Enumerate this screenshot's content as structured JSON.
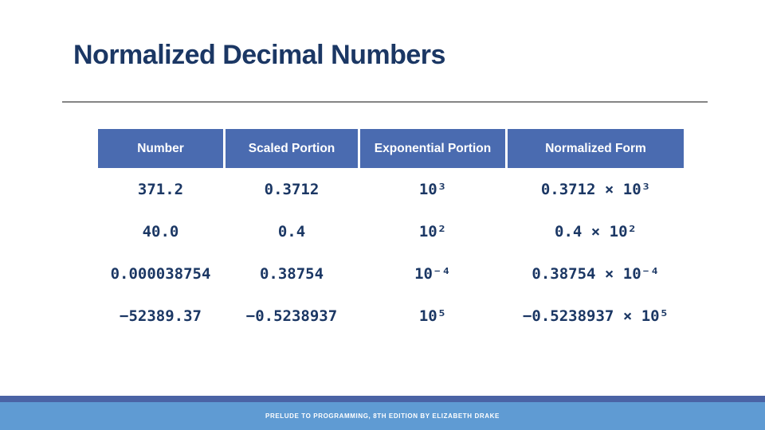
{
  "slide": {
    "title": "Normalized Decimal Numbers",
    "footer": "PRELUDE TO PROGRAMMING, 8TH EDITION BY ELIZABETH DRAKE"
  },
  "table": {
    "headers": [
      "Number",
      "Scaled Portion",
      "Exponential Portion",
      "Normalized Form"
    ],
    "rows": [
      [
        "371.2",
        "0.3712",
        "10³",
        "0.3712 × 10³"
      ],
      [
        "40.0",
        "0.4",
        "10²",
        "0.4 × 10²"
      ],
      [
        "0.000038754",
        "0.38754",
        "10⁻⁴",
        "0.38754 × 10⁻⁴"
      ],
      [
        "−52389.37",
        "−0.5238937",
        "10⁵",
        "−0.5238937 × 10⁵"
      ]
    ]
  },
  "colors": {
    "title_text": "#1B3764",
    "body_text": "#1B3764",
    "header_bg": "#4A6BB0",
    "header_text": "#FFFFFF",
    "divider": "#858585",
    "footer_bar_dark": "#4A63A5",
    "footer_bar_light": "#5F9BD3",
    "footer_text": "#FFFFFF"
  }
}
